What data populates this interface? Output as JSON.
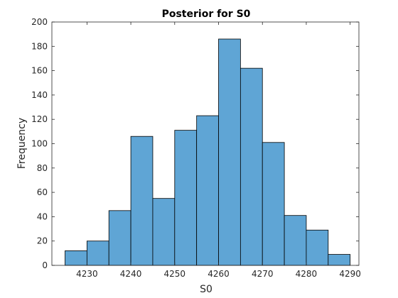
{
  "chart_data": {
    "type": "bar",
    "subtype": "histogram",
    "title": "Posterior for S0",
    "xlabel": "S0",
    "ylabel": "Frequency",
    "bin_edges": [
      4225,
      4230,
      4235,
      4240,
      4245,
      4250,
      4255,
      4260,
      4265,
      4270,
      4275,
      4280,
      4285,
      4290
    ],
    "values": [
      12,
      20,
      45,
      106,
      55,
      111,
      123,
      186,
      162,
      101,
      41,
      29,
      9
    ],
    "xlim": [
      4222,
      4292
    ],
    "ylim": [
      0,
      200
    ],
    "xticks": [
      4230,
      4240,
      4250,
      4260,
      4270,
      4280,
      4290
    ],
    "yticks": [
      0,
      20,
      40,
      60,
      80,
      100,
      120,
      140,
      160,
      180,
      200
    ],
    "grid": false,
    "box": true,
    "colors": {
      "bar_fill": "#5fa5d5",
      "bar_edge": "#000000",
      "axis": "#262626"
    }
  }
}
